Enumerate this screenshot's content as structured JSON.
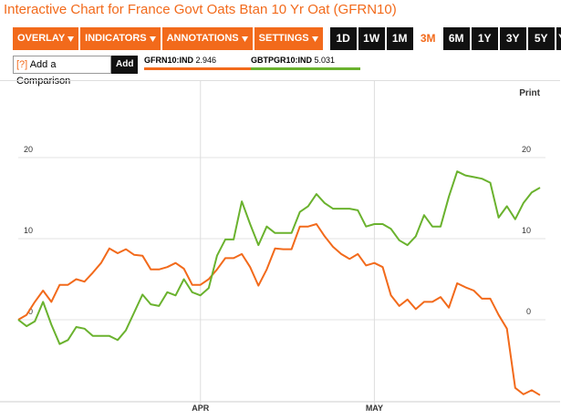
{
  "header": {
    "title": "Interactive Chart for France Govt Oats Btan 10 Yr Oat (GFRN10)"
  },
  "toolbar": {
    "menus": [
      "OVERLAY",
      "INDICATORS",
      "ANNOTATIONS",
      "SETTINGS"
    ],
    "ranges": [
      "1D",
      "1W",
      "1M",
      "3M",
      "6M",
      "1Y",
      "3Y",
      "5Y",
      "YTD"
    ],
    "selected_range": 3
  },
  "comparison": {
    "help": "[?]",
    "placeholder": "Add a Comparison",
    "button": "Add"
  },
  "print": "Print",
  "chart_data": {
    "type": "line",
    "categories": [
      null,
      null,
      null,
      null,
      null,
      null,
      null,
      null,
      null,
      null,
      null,
      null,
      null,
      null,
      null,
      null,
      null,
      null,
      null,
      null,
      null,
      null,
      "APR",
      null,
      null,
      null,
      null,
      null,
      null,
      null,
      null,
      null,
      null,
      null,
      null,
      null,
      null,
      null,
      null,
      null,
      null,
      null,
      null,
      "MAY",
      null,
      null,
      null,
      null,
      null,
      null,
      null,
      null,
      null,
      null,
      null,
      null,
      null,
      null,
      null,
      null,
      null,
      null,
      null,
      null
    ],
    "series": [
      {
        "name": "GFRN10:IND",
        "legend_value": 2.946,
        "color": "#f26a1b",
        "values": [
          0,
          0.6,
          2.2,
          3.6,
          2.2,
          4.3,
          4.3,
          5,
          4.7,
          5.8,
          7,
          8.8,
          8.2,
          8.7,
          8,
          7.9,
          6.2,
          6.2,
          6.5,
          7,
          6.3,
          4.3,
          4.3,
          5,
          6.2,
          7.6,
          7.6,
          8.1,
          6.5,
          4.2,
          6.2,
          8.8,
          8.7,
          8.7,
          11.5,
          11.5,
          11.8,
          10.3,
          9,
          8.1,
          7.5,
          8.1,
          6.7,
          7,
          6.5,
          3,
          1.7,
          2.5,
          1.3,
          2.2,
          2.2,
          2.8,
          1.5,
          4.5,
          4,
          3.6,
          2.6,
          2.6,
          0.6,
          -1.1,
          -8.4,
          -9.2,
          -8.7,
          -9.3
        ]
      },
      {
        "name": "GBTPGR10:IND",
        "legend_value": 5.031,
        "color": "#6ab22e",
        "values": [
          0,
          -0.8,
          -0.2,
          2.2,
          -0.6,
          -3,
          -2.5,
          -0.9,
          -1.1,
          -2,
          -2,
          -2,
          -2.5,
          -1.3,
          0.9,
          3.1,
          1.9,
          1.7,
          3.4,
          3,
          5,
          3.4,
          3,
          3.9,
          7.9,
          9.9,
          9.9,
          14.6,
          11.8,
          9.2,
          11.5,
          10.7,
          10.7,
          10.7,
          13.3,
          14,
          15.5,
          14.4,
          13.7,
          13.7,
          13.7,
          13.5,
          11.5,
          11.8,
          11.8,
          11.2,
          9.8,
          9.2,
          10.3,
          12.9,
          11.5,
          11.5,
          15.2,
          18.3,
          17.8,
          17.6,
          17.4,
          16.9,
          12.6,
          14,
          12.4,
          14.4,
          15.7,
          16.3
        ]
      }
    ],
    "ylim": [
      -10,
      28.5
    ],
    "yticks": [
      0,
      10,
      20
    ],
    "grid": true
  }
}
